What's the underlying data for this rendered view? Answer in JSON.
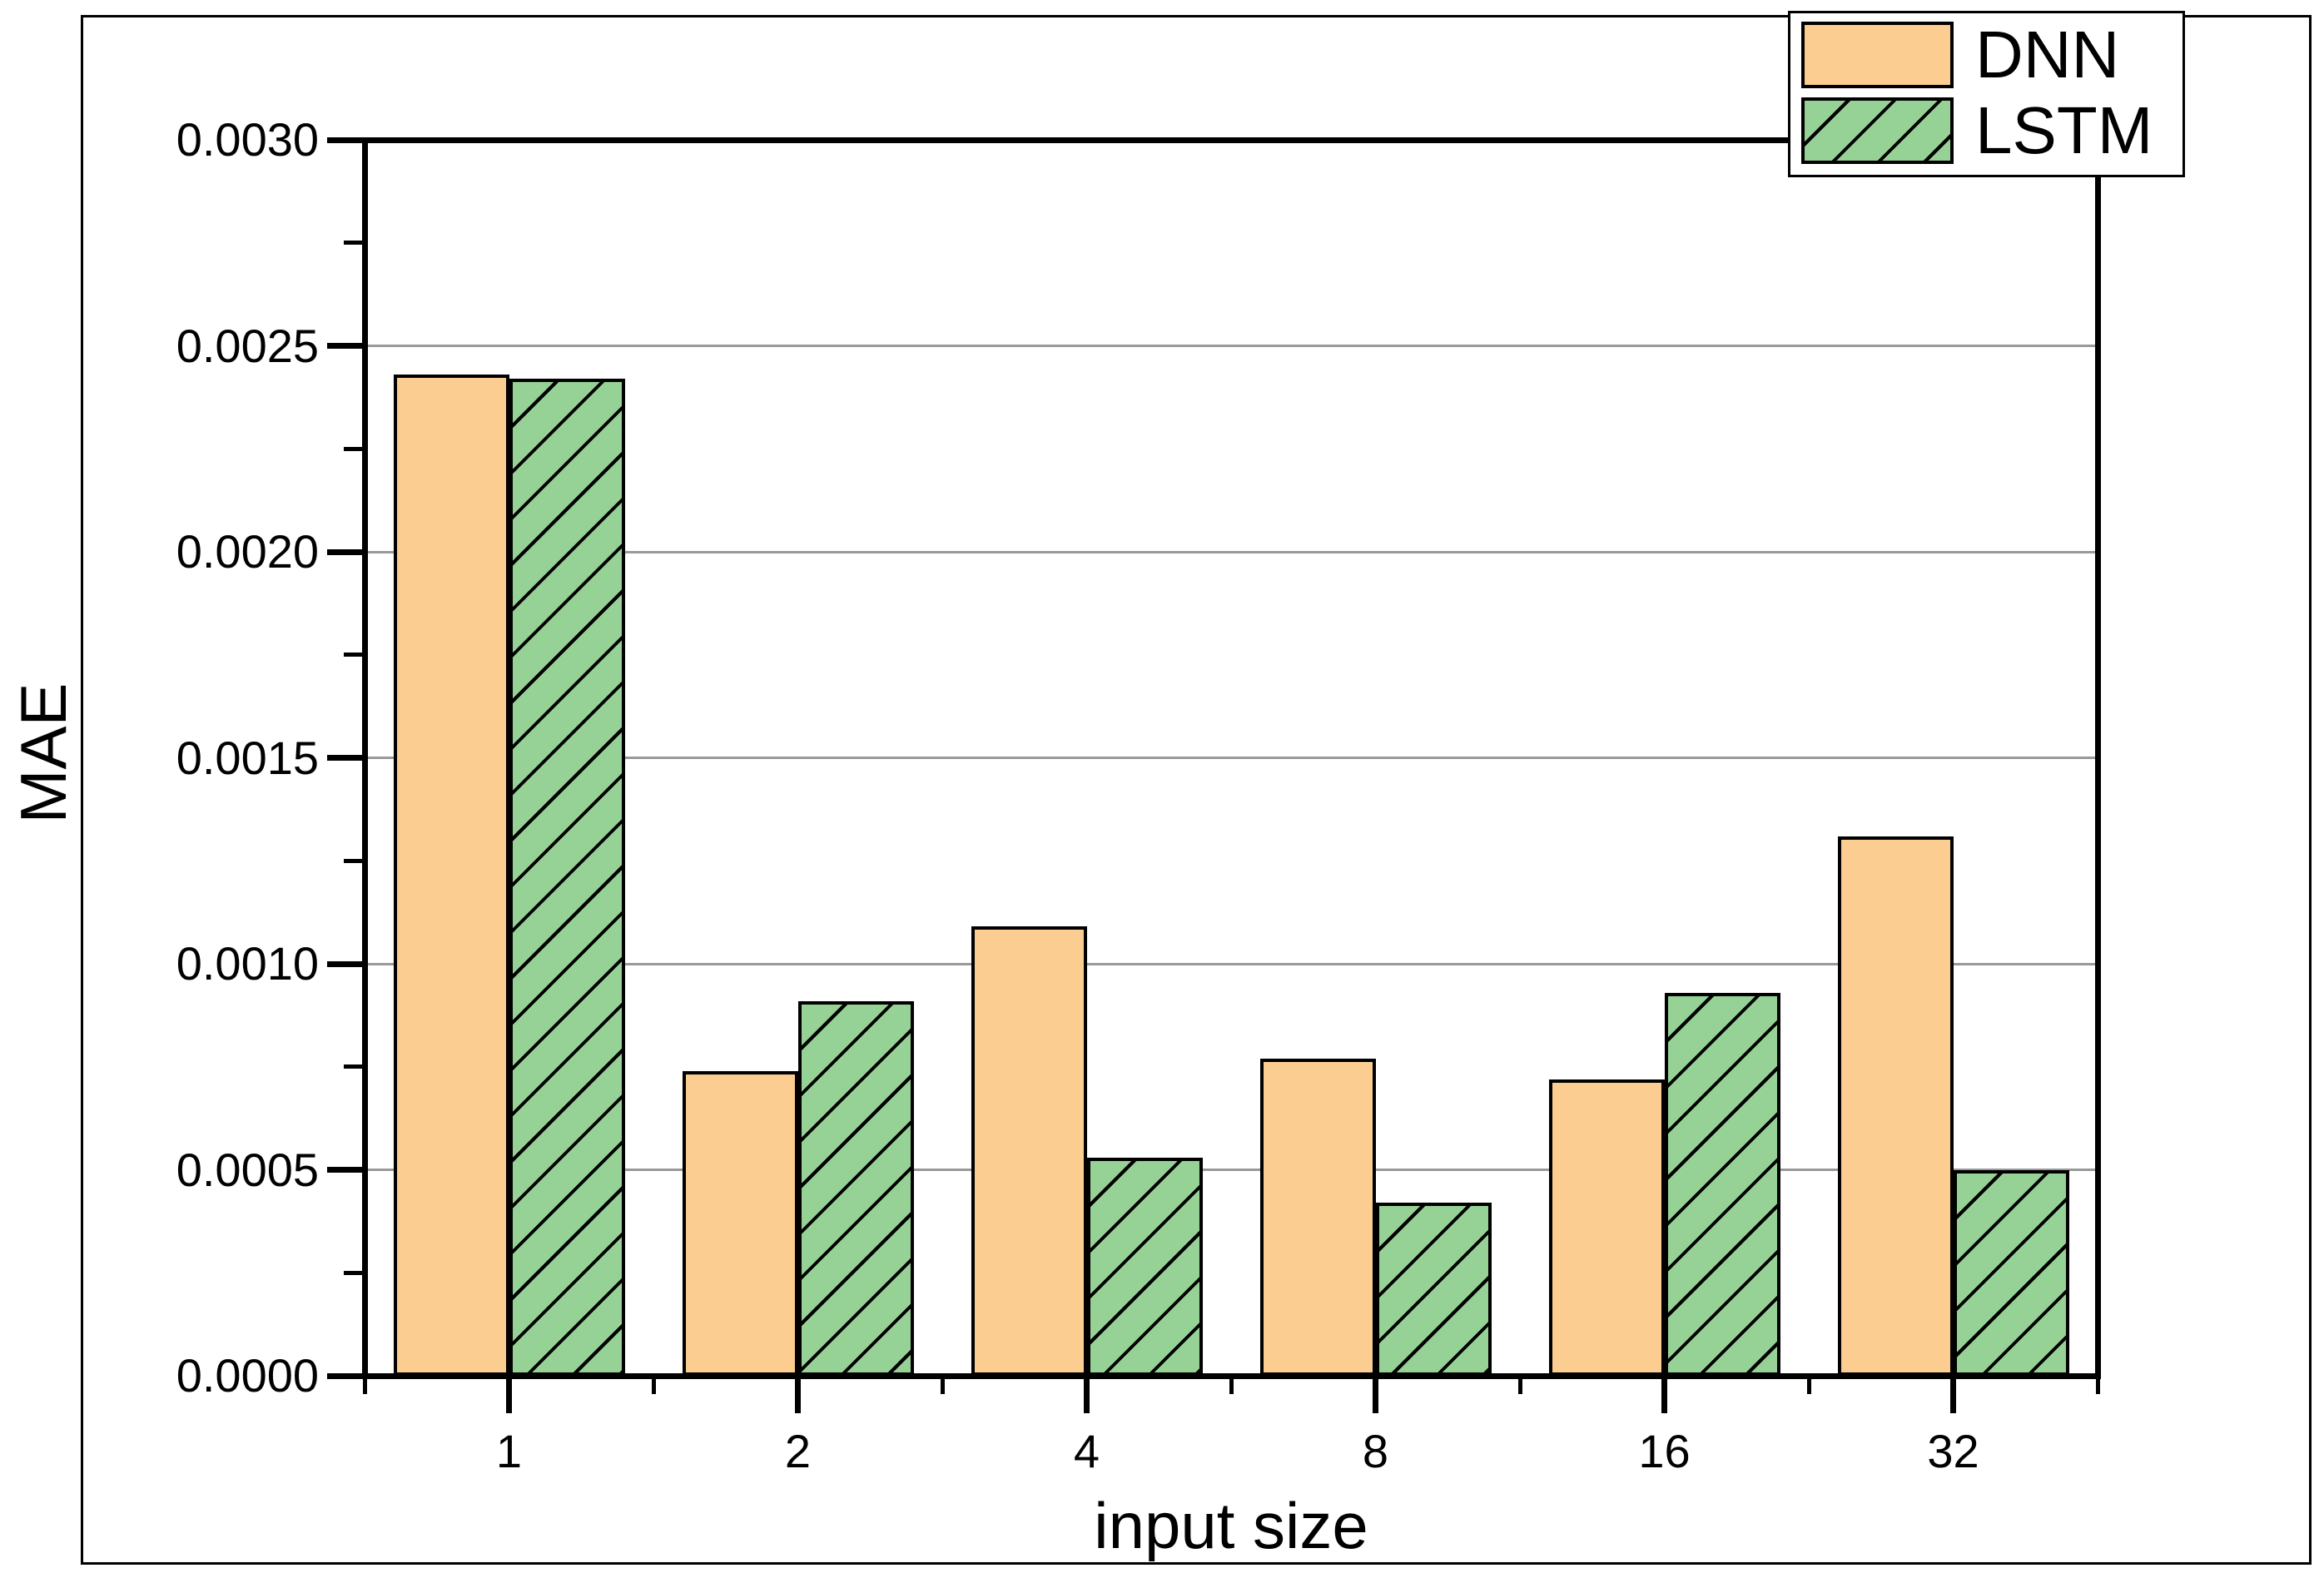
{
  "colors": {
    "dnn_fill": "#FCCD90",
    "lstm_fill": "#96D295",
    "gridline": "#999999",
    "axis": "#000000",
    "background": "#FFFFFF"
  },
  "legend": {
    "items": [
      {
        "label": "DNN"
      },
      {
        "label": "LSTM"
      }
    ]
  },
  "chart_data": {
    "type": "bar",
    "title": "",
    "xlabel": "input size",
    "ylabel": "MAE",
    "categories": [
      "1",
      "2",
      "4",
      "8",
      "16",
      "32"
    ],
    "series": [
      {
        "name": "DNN",
        "fill": "#FCCD90",
        "hatch": "none",
        "values": [
          0.00243,
          0.00074,
          0.00109,
          0.00077,
          0.00072,
          0.00131
        ]
      },
      {
        "name": "LSTM",
        "fill": "#96D295",
        "hatch": "diagonal",
        "values": [
          0.00242,
          0.00091,
          0.00053,
          0.00042,
          0.00093,
          0.0005
        ]
      }
    ],
    "ylim": [
      0,
      0.003
    ],
    "ytick_step": 0.0005,
    "ytick_labels": [
      "0.0000",
      "0.0005",
      "0.0010",
      "0.0015",
      "0.0020",
      "0.0025",
      "0.0030"
    ],
    "yminor_step": 0.00025,
    "grid": "horizontal-major",
    "legend_position": "top-right",
    "bar_group_layout": "paired-centered-on-tick"
  }
}
